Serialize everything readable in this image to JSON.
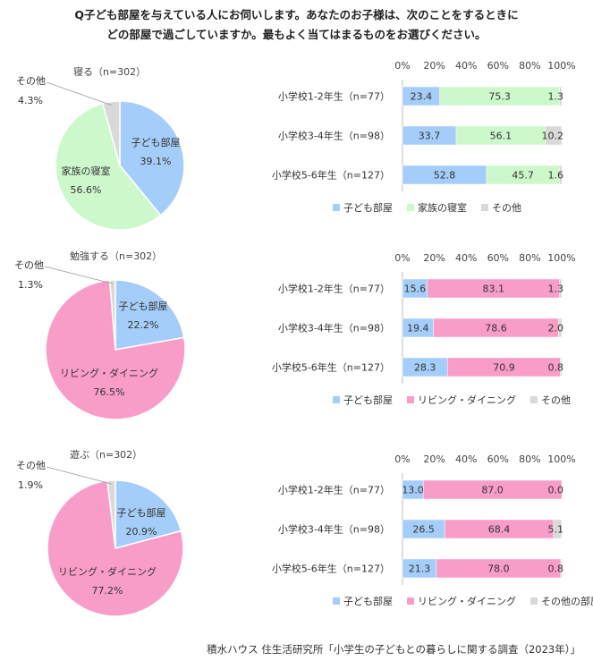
{
  "question": {
    "line1": "Q子ども部屋を与えている人にお伺いします。あなたのお子様は、次のことをするときに",
    "line2": "どの部屋で過ごしていますか。最もよく当てはまるものをお選びください。"
  },
  "source": "積水ハウス 住生活研究所「小学生の子どもとの暮らしに関する調査（2023年）」",
  "colors": {
    "child_room": "#a5cdf9",
    "family_bedroom": "#cdf8cc",
    "living_dining": "#f89cc8",
    "other": "#d9d9d9"
  },
  "chart_data": [
    {
      "type": "pie",
      "title": "寝る（n=302）",
      "slices": [
        {
          "label": "子ども部屋",
          "value": 39.1,
          "value_label": "39.1%",
          "color": "#a5cdf9"
        },
        {
          "label": "家族の寝室",
          "value": 56.6,
          "value_label": "56.6%",
          "color": "#cdf8cc"
        },
        {
          "label": "その他",
          "value": 4.3,
          "value_label": "4.3%",
          "color": "#d9d9d9"
        }
      ]
    },
    {
      "type": "bar",
      "orientation": "horizontal",
      "stacked": true,
      "categories": [
        "小学校1-2年生（n=77）",
        "小学校3-4年生（n=98）",
        "小学校5-6年生（n=127）"
      ],
      "xlim": [
        0,
        100
      ],
      "ticks": [
        "0%",
        "20%",
        "40%",
        "60%",
        "80%",
        "100%"
      ],
      "legend_position": "bottom",
      "series": [
        {
          "name": "子ども部屋",
          "values": [
            23.4,
            33.7,
            52.8
          ],
          "labels": [
            "23.4",
            "33.7",
            "52.8"
          ],
          "color": "#a5cdf9"
        },
        {
          "name": "家族の寝室",
          "values": [
            75.3,
            56.1,
            45.7
          ],
          "labels": [
            "75.3",
            "56.1",
            "45.7"
          ],
          "color": "#cdf8cc"
        },
        {
          "name": "その他",
          "values": [
            1.3,
            10.2,
            1.6
          ],
          "labels": [
            "1.3",
            "10.2",
            "1.6"
          ],
          "color": "#d9d9d9"
        }
      ]
    },
    {
      "type": "pie",
      "title": "勉強する（n=302）",
      "slices": [
        {
          "label": "子ども部屋",
          "value": 22.2,
          "value_label": "22.2%",
          "color": "#a5cdf9"
        },
        {
          "label": "リビング・ダイニング",
          "value": 76.5,
          "value_label": "76.5%",
          "color": "#f89cc8"
        },
        {
          "label": "その他",
          "value": 1.3,
          "value_label": "1.3%",
          "color": "#d9d9d9"
        }
      ]
    },
    {
      "type": "bar",
      "orientation": "horizontal",
      "stacked": true,
      "categories": [
        "小学校1-2年生（n=77）",
        "小学校3-4年生（n=98）",
        "小学校5-6年生（n=127）"
      ],
      "xlim": [
        0,
        100
      ],
      "ticks": [
        "0%",
        "20%",
        "40%",
        "60%",
        "80%",
        "100%"
      ],
      "legend_position": "bottom",
      "series": [
        {
          "name": "子ども部屋",
          "values": [
            15.6,
            19.4,
            28.3
          ],
          "labels": [
            "15.6",
            "19.4",
            "28.3"
          ],
          "color": "#a5cdf9"
        },
        {
          "name": "リビング・ダイニング",
          "values": [
            83.1,
            78.6,
            70.9
          ],
          "labels": [
            "83.1",
            "78.6",
            "70.9"
          ],
          "color": "#f89cc8"
        },
        {
          "name": "その他",
          "values": [
            1.3,
            2.0,
            0.8
          ],
          "labels": [
            "1.3",
            "2.0",
            "0.8"
          ],
          "color": "#d9d9d9"
        }
      ]
    },
    {
      "type": "pie",
      "title": "遊ぶ（n=302）",
      "slices": [
        {
          "label": "子ども部屋",
          "value": 20.9,
          "value_label": "20.9%",
          "color": "#a5cdf9"
        },
        {
          "label": "リビング・ダイニング",
          "value": 77.2,
          "value_label": "77.2%",
          "color": "#f89cc8"
        },
        {
          "label": "その他",
          "value": 1.9,
          "value_label": "1.9%",
          "color": "#d9d9d9"
        }
      ]
    },
    {
      "type": "bar",
      "orientation": "horizontal",
      "stacked": true,
      "categories": [
        "小学校1-2年生（n=77）",
        "小学校3-4年生（n=98）",
        "小学校5-6年生（n=127）"
      ],
      "xlim": [
        0,
        100
      ],
      "ticks": [
        "0%",
        "20%",
        "40%",
        "60%",
        "80%",
        "100%"
      ],
      "legend_position": "bottom",
      "series": [
        {
          "name": "子ども部屋",
          "values": [
            13.0,
            26.5,
            21.3
          ],
          "labels": [
            "13.0",
            "26.5",
            "21.3"
          ],
          "color": "#a5cdf9"
        },
        {
          "name": "リビング・ダイニング",
          "values": [
            87.0,
            68.4,
            78.0
          ],
          "labels": [
            "87.0",
            "68.4",
            "78.0"
          ],
          "color": "#f89cc8"
        },
        {
          "name": "その他の部屋",
          "values": [
            0.0,
            5.1,
            0.8
          ],
          "labels": [
            "0.0",
            "5.1",
            "0.8"
          ],
          "color": "#d9d9d9"
        }
      ]
    }
  ]
}
